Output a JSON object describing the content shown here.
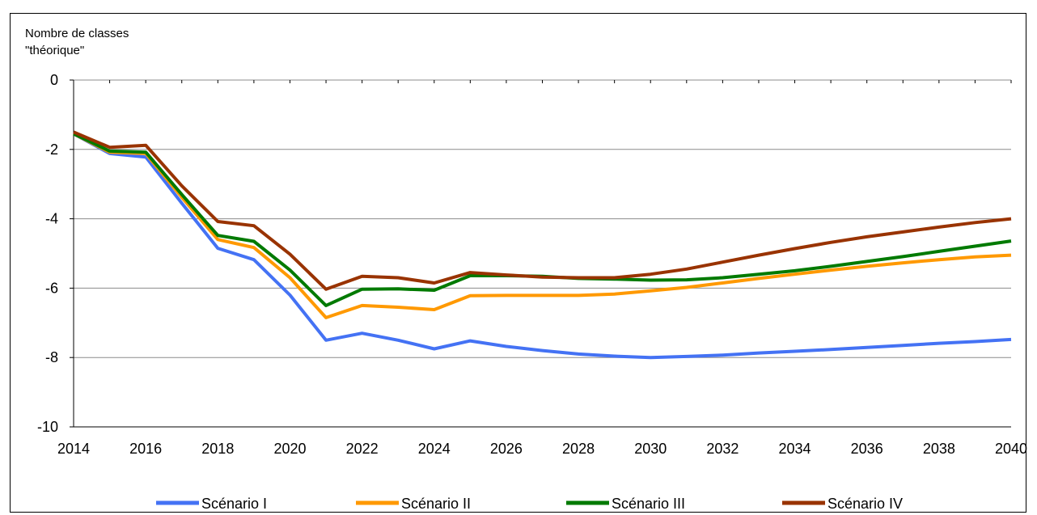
{
  "chart_data": {
    "type": "line",
    "title": "",
    "ylabel_lines": [
      "Nombre de classes",
      "\"théorique\""
    ],
    "xlabel": "",
    "ylim": [
      -10,
      0
    ],
    "yticks": [
      0,
      -2,
      -4,
      -6,
      -8,
      -10
    ],
    "xlim": [
      2014,
      2040
    ],
    "xtick_labels": [
      "2014",
      "2016",
      "2018",
      "2020",
      "2022",
      "2024",
      "2026",
      "2028",
      "2030",
      "2032",
      "2034",
      "2036",
      "2038",
      "2040"
    ],
    "grid": "horizontal",
    "legend_position": "bottom",
    "x": [
      2014,
      2015,
      2016,
      2017,
      2018,
      2019,
      2020,
      2021,
      2022,
      2023,
      2024,
      2025,
      2026,
      2027,
      2028,
      2029,
      2030,
      2031,
      2032,
      2033,
      2034,
      2035,
      2036,
      2037,
      2038,
      2039,
      2040
    ],
    "series": [
      {
        "name": "Scénario I",
        "color": "#4472F4",
        "values": [
          -1.55,
          -2.12,
          -2.22,
          -3.55,
          -4.85,
          -5.18,
          -6.2,
          -7.5,
          -7.3,
          -7.5,
          -7.75,
          -7.52,
          -7.68,
          -7.8,
          -7.9,
          -7.96,
          -8.0,
          -7.97,
          -7.93,
          -7.87,
          -7.82,
          -7.77,
          -7.71,
          -7.65,
          -7.59,
          -7.54,
          -7.48
        ]
      },
      {
        "name": "Scénario II",
        "color": "#FF9900",
        "values": [
          -1.55,
          -2.08,
          -2.12,
          -3.38,
          -4.6,
          -4.83,
          -5.7,
          -6.85,
          -6.5,
          -6.55,
          -6.62,
          -6.22,
          -6.21,
          -6.21,
          -6.21,
          -6.17,
          -6.08,
          -5.98,
          -5.85,
          -5.72,
          -5.6,
          -5.48,
          -5.37,
          -5.27,
          -5.18,
          -5.1,
          -5.05
        ]
      },
      {
        "name": "Scénario III",
        "color": "#007A00",
        "values": [
          -1.55,
          -2.05,
          -2.08,
          -3.3,
          -4.48,
          -4.65,
          -5.48,
          -6.5,
          -6.03,
          -6.02,
          -6.06,
          -5.64,
          -5.64,
          -5.66,
          -5.72,
          -5.74,
          -5.77,
          -5.76,
          -5.7,
          -5.6,
          -5.5,
          -5.37,
          -5.23,
          -5.09,
          -4.94,
          -4.79,
          -4.64
        ]
      },
      {
        "name": "Scénario IV",
        "color": "#993300",
        "values": [
          -1.5,
          -1.94,
          -1.88,
          -3.05,
          -4.08,
          -4.2,
          -5.02,
          -6.03,
          -5.66,
          -5.7,
          -5.85,
          -5.55,
          -5.62,
          -5.68,
          -5.7,
          -5.7,
          -5.6,
          -5.45,
          -5.25,
          -5.05,
          -4.86,
          -4.68,
          -4.52,
          -4.38,
          -4.24,
          -4.11,
          -4.0
        ]
      }
    ]
  }
}
